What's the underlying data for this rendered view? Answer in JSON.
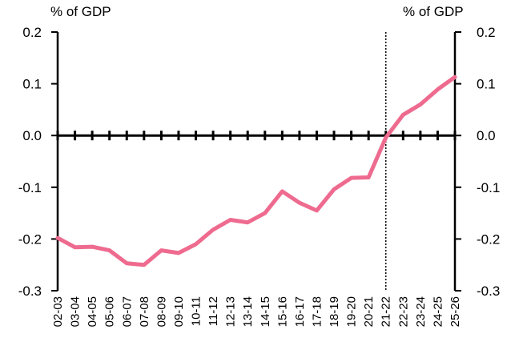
{
  "chart_data": {
    "type": "line",
    "left_unit": "% of GDP",
    "right_unit": "% of GDP",
    "yticks": [
      "0.2",
      "0.1",
      "0.0",
      "-0.1",
      "-0.2",
      "-0.3"
    ],
    "ylim": [
      -0.3,
      0.2
    ],
    "categories": [
      "02-03",
      "03-04",
      "04-05",
      "05-06",
      "06-07",
      "07-08",
      "08-09",
      "09-10",
      "10-11",
      "11-12",
      "12-13",
      "13-14",
      "14-15",
      "15-16",
      "16-17",
      "17-18",
      "18-19",
      "19-20",
      "20-21",
      "21-22",
      "22-23",
      "23-24",
      "24-25",
      "25-26"
    ],
    "series": [
      {
        "values": [
          -0.198,
          -0.216,
          -0.215,
          -0.222,
          -0.247,
          -0.25,
          -0.222,
          -0.227,
          -0.21,
          -0.182,
          -0.163,
          -0.168,
          -0.15,
          -0.108,
          -0.13,
          -0.145,
          -0.104,
          -0.082,
          -0.081,
          -0.004,
          0.04,
          0.06,
          0.089,
          0.113
        ]
      }
    ],
    "vertical_marker_category": "21-22",
    "line_color": "#ee6b8f",
    "grid": false
  }
}
